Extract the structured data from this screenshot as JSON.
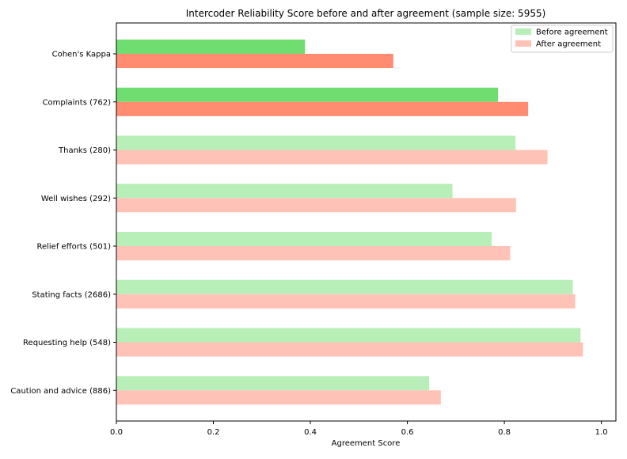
{
  "chart_data": {
    "type": "bar",
    "orientation": "horizontal",
    "title": "Intercoder Reliability Score before and after agreement (sample size: 5955)",
    "xlabel": "Agreement Score",
    "ylabel": "",
    "xlim": [
      0,
      1.03
    ],
    "xticks": [
      "0.0",
      "0.2",
      "0.4",
      "0.6",
      "0.8",
      "1.0"
    ],
    "grid": false,
    "legend_position": "top-right",
    "categories": [
      "Cohen's Kappa",
      "Complaints  (762)",
      "Thanks  (280)",
      "Well wishes  (292)",
      "Relief efforts  (501)",
      "Stating facts  (2686)",
      "Requesting help  (548)",
      "Caution and advice  (886)"
    ],
    "series": [
      {
        "name": "Before agreement",
        "color": "#b8eeb8",
        "highlight_color": "#70dd70",
        "values": [
          0.389,
          0.787,
          0.823,
          0.693,
          0.774,
          0.941,
          0.957,
          0.645
        ]
      },
      {
        "name": "After agreement",
        "color": "#ffc2b6",
        "highlight_color": "#ff8b71",
        "values": [
          0.571,
          0.849,
          0.889,
          0.824,
          0.812,
          0.946,
          0.962,
          0.669
        ]
      }
    ],
    "highlighted_categories": [
      0,
      1
    ]
  }
}
